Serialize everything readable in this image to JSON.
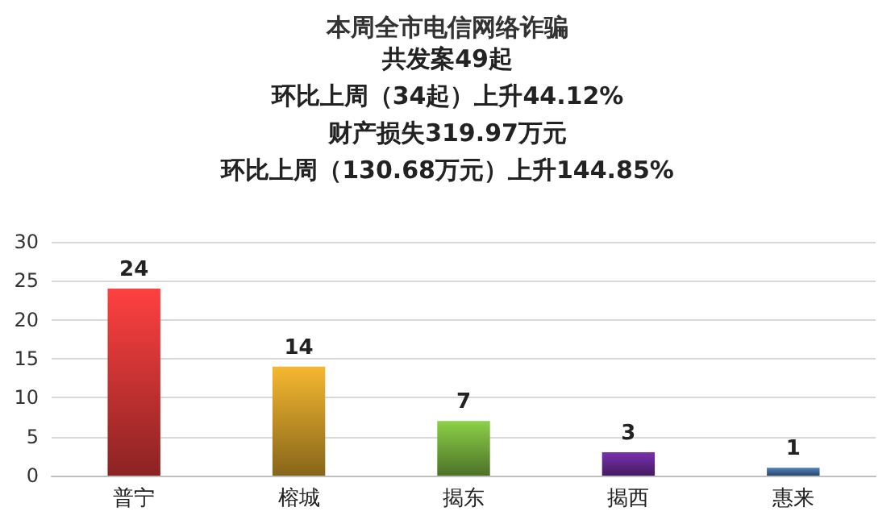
{
  "chart_data": {
    "type": "bar",
    "title": "本周全市电信网络诈骗",
    "annotations": [
      "共发案49起",
      "环比上周（34起）上升44.12%",
      "财产损失319.97万元",
      "环比上周（130.68万元）上升144.85%"
    ],
    "categories": [
      "普宁",
      "榕城",
      "揭东",
      "揭西",
      "惠来"
    ],
    "values": [
      24,
      14,
      7,
      3,
      1
    ],
    "colors": [
      "#ff4040",
      "#f5b830",
      "#8cd048",
      "#7a30b0",
      "#4f81bd"
    ],
    "ylim": [
      0,
      30
    ],
    "yticks": [
      0,
      5,
      10,
      15,
      20,
      25,
      30
    ],
    "grid": "y",
    "data_labels": true
  }
}
